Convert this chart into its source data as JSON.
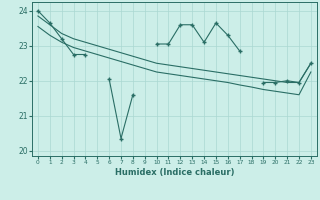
{
  "title": "",
  "xlabel": "Humidex (Indice chaleur)",
  "bg_color": "#cceee8",
  "grid_color": "#aad8d2",
  "line_color": "#2a6e65",
  "xlim": [
    -0.5,
    23.5
  ],
  "ylim": [
    19.85,
    24.25
  ],
  "yticks": [
    20,
    21,
    22,
    23,
    24
  ],
  "xticks": [
    0,
    1,
    2,
    3,
    4,
    5,
    6,
    7,
    8,
    9,
    10,
    11,
    12,
    13,
    14,
    15,
    16,
    17,
    18,
    19,
    20,
    21,
    22,
    23
  ],
  "line1_segments": [
    [
      [
        0,
        24.0
      ],
      [
        1,
        23.65
      ],
      [
        2,
        23.2
      ],
      [
        3,
        22.75
      ],
      [
        4,
        22.75
      ]
    ],
    [
      [
        6,
        22.05
      ],
      [
        7,
        20.35
      ],
      [
        8,
        21.6
      ]
    ],
    [
      [
        10,
        23.05
      ],
      [
        11,
        23.05
      ],
      [
        12,
        23.6
      ],
      [
        13,
        23.6
      ],
      [
        14,
        23.1
      ],
      [
        15,
        23.65
      ],
      [
        16,
        23.3
      ],
      [
        17,
        22.85
      ]
    ],
    [
      [
        19,
        21.95
      ],
      [
        20,
        21.95
      ],
      [
        21,
        22.0
      ],
      [
        22,
        21.95
      ],
      [
        23,
        22.5
      ]
    ]
  ],
  "line2_y": [
    23.85,
    23.6,
    23.35,
    23.2,
    23.1,
    23.0,
    22.9,
    22.8,
    22.7,
    22.6,
    22.5,
    22.45,
    22.4,
    22.35,
    22.3,
    22.25,
    22.2,
    22.15,
    22.1,
    22.05,
    22.0,
    21.95,
    21.95,
    22.5
  ],
  "line3_y": [
    23.55,
    23.3,
    23.1,
    22.95,
    22.85,
    22.75,
    22.65,
    22.55,
    22.45,
    22.35,
    22.25,
    22.2,
    22.15,
    22.1,
    22.05,
    22.0,
    21.95,
    21.88,
    21.82,
    21.75,
    21.7,
    21.65,
    21.6,
    22.25
  ]
}
